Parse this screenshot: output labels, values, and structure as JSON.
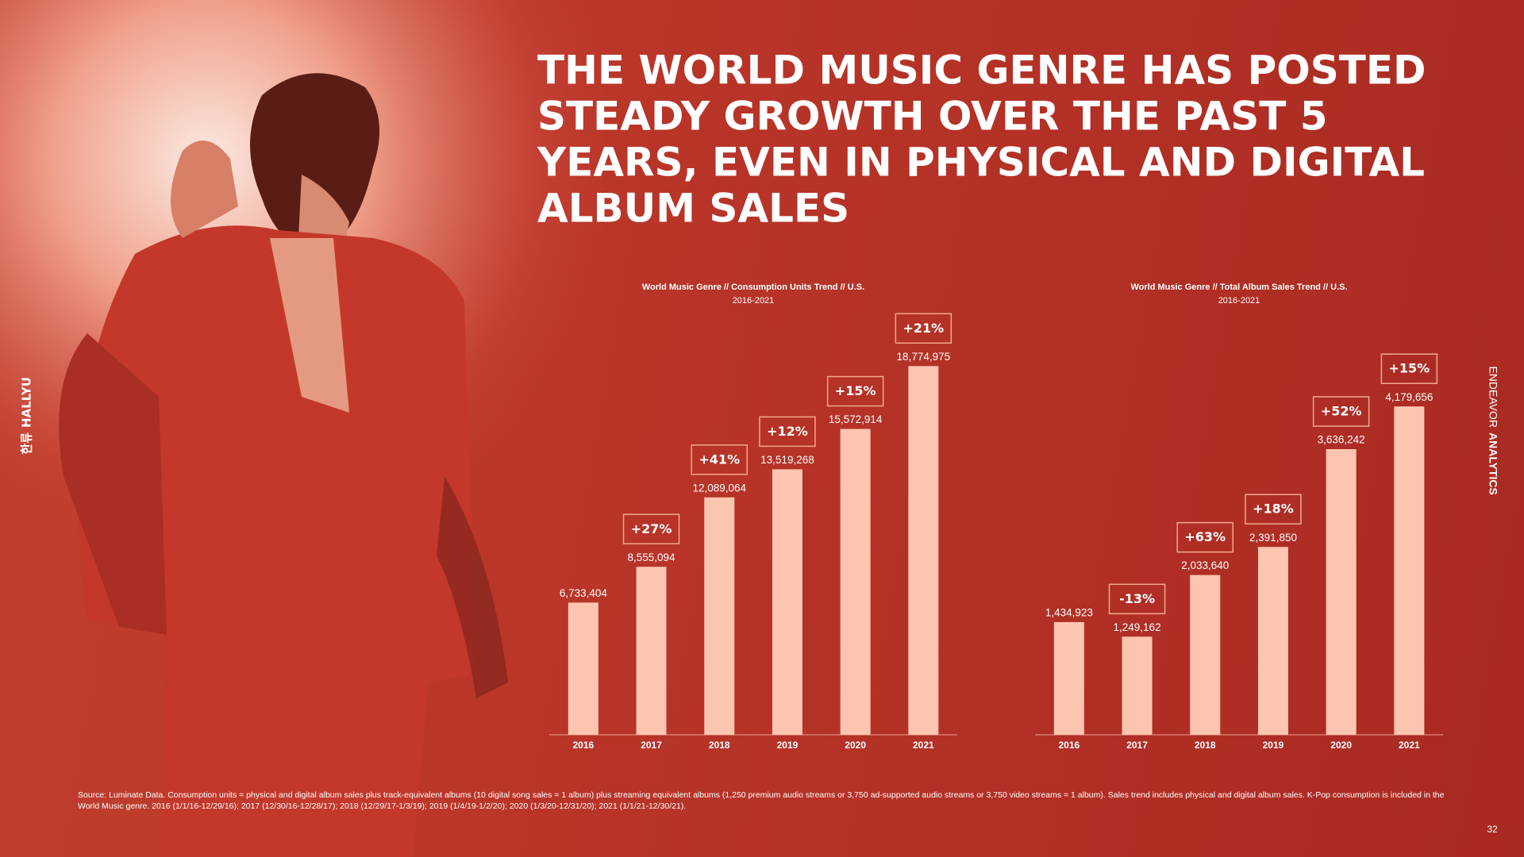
{
  "slide": {
    "title_lines": [
      "THE WORLD MUSIC GENRE HAS POSTED",
      "STEADY GROWTH OVER THE PAST 5",
      "YEARS, EVEN IN PHYSICAL AND DIGITAL",
      "ALBUM SALES"
    ],
    "side_label_ko": "한류",
    "side_label": "HALLYU",
    "brand_light": "ENDEAVOR",
    "brand_bold": "ANALYTICS"
  },
  "chart_data": [
    {
      "type": "bar",
      "title": "World Music Genre // Consumption Units Trend // U.S.",
      "subtitle": "2016-2021",
      "categories": [
        "2016",
        "2017",
        "2018",
        "2019",
        "2020",
        "2021"
      ],
      "values": [
        6733404,
        8555094,
        12089064,
        13519268,
        15572914,
        18774975
      ],
      "value_labels": [
        "6,733,404",
        "8,555,094",
        "12,089,064",
        "13,519,268",
        "15,572,914",
        "18,774,975"
      ],
      "annotations": [
        null,
        "+27%",
        "+41%",
        "+12%",
        "+15%",
        "+21%"
      ],
      "color": "#fcc5b0",
      "ylim": [
        0,
        20000000
      ]
    },
    {
      "type": "bar",
      "title": "World Music Genre // Total Album Sales Trend // U.S.",
      "subtitle": "2016-2021",
      "categories": [
        "2016",
        "2017",
        "2018",
        "2019",
        "2020",
        "2021"
      ],
      "values": [
        1434923,
        1249162,
        2033640,
        2391850,
        3636242,
        4179656
      ],
      "value_labels": [
        "1,434,923",
        "1,249,162",
        "2,033,640",
        "2,391,850",
        "3,636,242",
        "4,179,656"
      ],
      "annotations": [
        null,
        "-13%",
        "+63%",
        "+18%",
        "+52%",
        "+15%"
      ],
      "color": "#fcc5b0",
      "ylim": [
        0,
        5000000
      ]
    }
  ],
  "footer": {
    "source": "Source: Luminate Data. Consumption units = physical and digital album sales plus track-equivalent albums (10 digital song sales = 1 album) plus streaming equivalent albums (1,250 premium audio streams or 3,750 ad-supported audio streams or 3,750 video streams = 1 album). Sales trend includes physical and digital album sales. K-Pop consumption is included in the World Music genre. 2016 (1/1/16-12/29/16); 2017 (12/30/16-12/28/17); 2018 (12/29/17-1/3/19); 2019 (1/4/19-1/2/20); 2020 (1/3/20-12/31/20); 2021 (1/1/21-12/30/21).",
    "page": 32
  }
}
